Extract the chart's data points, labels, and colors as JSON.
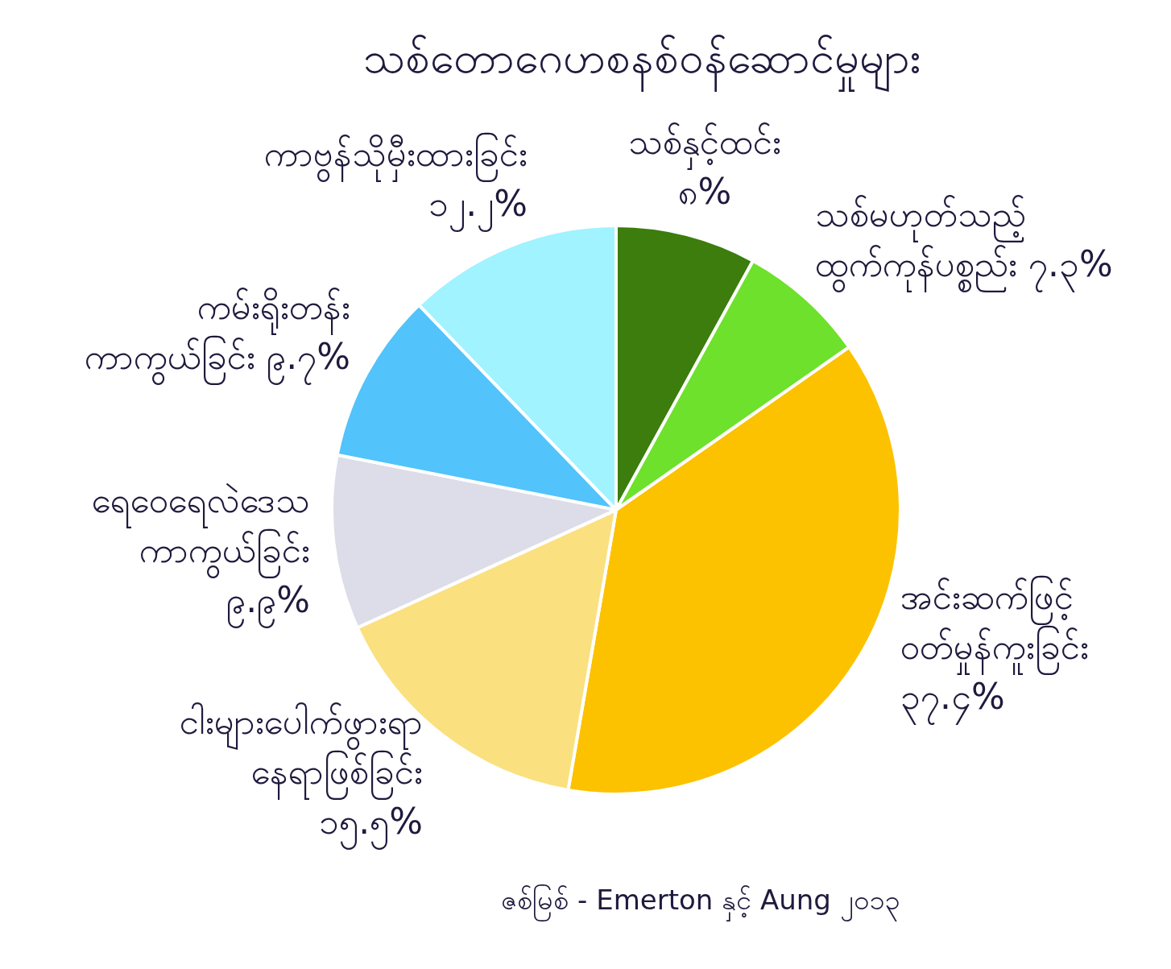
{
  "chart_data": {
    "type": "pie",
    "title": "သစ်တောဂေဟစနစ်ဝန်ဆောင်မှုများ",
    "categories": [
      "သစ်နှင့်ထင်း",
      "သစ်မဟုတ်သည့် ထွက်ကုန်ပစ္စည်း",
      "အင်းဆက်ဖြင့် ဝတ်မှုန်ကူးခြင်း",
      "ငါးများပေါက်ဖွားရာ နေရာဖြစ်ခြင်း",
      "ရေဝေရေလဲဒေသ ကာကွယ်ခြင်း",
      "ကမ်းရိုးတန်း ကာကွယ်ခြင်း",
      "ကာဗွန်သိုမှီးထားခြင်း"
    ],
    "values": [
      8,
      7.3,
      37.4,
      15.5,
      9.9,
      9.7,
      12.2
    ],
    "value_labels": [
      "၈%",
      "၇.၃%",
      "၃၇.၄%",
      "၁၅.၅%",
      "၉.၉%",
      "၉.၇%",
      "၁၂.၂%"
    ],
    "colors": [
      "#3c7d0e",
      "#6de12b",
      "#fcc200",
      "#fae07f",
      "#dcdde8",
      "#52c3fb",
      "#a0f3ff"
    ],
    "annotations": [
      "ဇစ်မြစ် - Emerton နှင့် Aung ၂၀၁၃"
    ]
  }
}
